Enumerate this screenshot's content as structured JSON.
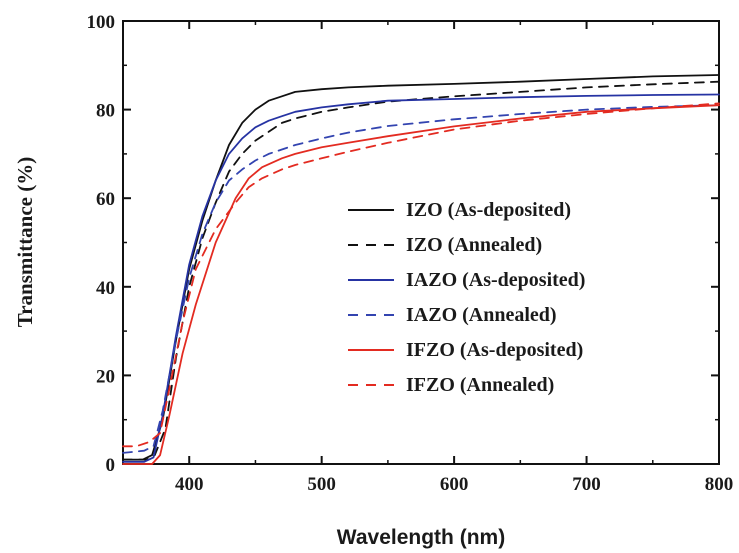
{
  "chart_data": {
    "type": "line",
    "xlabel": "Wavelength (nm)",
    "ylabel": "Transmittance (%)",
    "xlim": [
      350,
      800
    ],
    "ylim": [
      0,
      100
    ],
    "xticks": [
      400,
      500,
      600,
      700,
      800
    ],
    "yticks": [
      0,
      20,
      40,
      60,
      80,
      100
    ],
    "legend_position": "center-right",
    "grid": false,
    "series": [
      {
        "name": "IZO (As-deposited)",
        "color": "#111111",
        "dash": "solid",
        "points": [
          [
            350,
            1
          ],
          [
            365,
            1
          ],
          [
            372,
            2
          ],
          [
            380,
            10
          ],
          [
            390,
            28
          ],
          [
            400,
            44
          ],
          [
            410,
            55
          ],
          [
            420,
            64
          ],
          [
            430,
            72
          ],
          [
            440,
            77
          ],
          [
            450,
            80
          ],
          [
            460,
            82
          ],
          [
            470,
            83
          ],
          [
            480,
            84
          ],
          [
            500,
            84.6
          ],
          [
            520,
            85
          ],
          [
            550,
            85.4
          ],
          [
            600,
            85.8
          ],
          [
            650,
            86.3
          ],
          [
            700,
            86.9
          ],
          [
            750,
            87.5
          ],
          [
            800,
            87.8
          ]
        ]
      },
      {
        "name": "IZO (Annealed)",
        "color": "#111111",
        "dash": "dashed",
        "points": [
          [
            350,
            1
          ],
          [
            368,
            1
          ],
          [
            374,
            2
          ],
          [
            382,
            8
          ],
          [
            390,
            24
          ],
          [
            400,
            40
          ],
          [
            410,
            51
          ],
          [
            420,
            59
          ],
          [
            430,
            66
          ],
          [
            440,
            70
          ],
          [
            450,
            73
          ],
          [
            460,
            75
          ],
          [
            470,
            77
          ],
          [
            480,
            78
          ],
          [
            500,
            79.5
          ],
          [
            520,
            80.5
          ],
          [
            550,
            81.8
          ],
          [
            600,
            83
          ],
          [
            650,
            84
          ],
          [
            700,
            85
          ],
          [
            750,
            85.7
          ],
          [
            800,
            86.3
          ]
        ]
      },
      {
        "name": "IAZO (As-deposited)",
        "color": "#2633a3",
        "dash": "solid",
        "points": [
          [
            350,
            0.5
          ],
          [
            366,
            0.5
          ],
          [
            373,
            1.5
          ],
          [
            380,
            11
          ],
          [
            390,
            29
          ],
          [
            400,
            45
          ],
          [
            410,
            56
          ],
          [
            420,
            64
          ],
          [
            430,
            70
          ],
          [
            440,
            73.5
          ],
          [
            450,
            76
          ],
          [
            460,
            77.5
          ],
          [
            470,
            78.5
          ],
          [
            480,
            79.5
          ],
          [
            500,
            80.5
          ],
          [
            520,
            81.2
          ],
          [
            550,
            82
          ],
          [
            600,
            82.4
          ],
          [
            650,
            82.8
          ],
          [
            700,
            83.1
          ],
          [
            750,
            83.3
          ],
          [
            800,
            83.4
          ]
        ]
      },
      {
        "name": "IAZO (Annealed)",
        "color": "#3344b0",
        "dash": "dashed",
        "points": [
          [
            350,
            2.5
          ],
          [
            366,
            3
          ],
          [
            373,
            4
          ],
          [
            380,
            12
          ],
          [
            390,
            28
          ],
          [
            400,
            42
          ],
          [
            410,
            52
          ],
          [
            420,
            59
          ],
          [
            430,
            64
          ],
          [
            440,
            66.5
          ],
          [
            450,
            68.5
          ],
          [
            460,
            70
          ],
          [
            470,
            71
          ],
          [
            480,
            72
          ],
          [
            500,
            73.5
          ],
          [
            520,
            74.8
          ],
          [
            550,
            76.3
          ],
          [
            600,
            77.8
          ],
          [
            650,
            79
          ],
          [
            700,
            80
          ],
          [
            750,
            80.6
          ],
          [
            800,
            81
          ]
        ]
      },
      {
        "name": "IFZO (As-deposited)",
        "color": "#e32b21",
        "dash": "solid",
        "points": [
          [
            350,
            0
          ],
          [
            372,
            0
          ],
          [
            378,
            2
          ],
          [
            385,
            11
          ],
          [
            395,
            25
          ],
          [
            405,
            36
          ],
          [
            420,
            50
          ],
          [
            435,
            60
          ],
          [
            445,
            64.5
          ],
          [
            455,
            67
          ],
          [
            470,
            69
          ],
          [
            480,
            70
          ],
          [
            500,
            71.5
          ],
          [
            520,
            72.5
          ],
          [
            550,
            74
          ],
          [
            600,
            76.2
          ],
          [
            650,
            78
          ],
          [
            700,
            79.5
          ],
          [
            750,
            80.3
          ],
          [
            800,
            81
          ]
        ]
      },
      {
        "name": "IFZO (Annealed)",
        "color": "#e32b21",
        "dash": "dashed",
        "points": [
          [
            350,
            4
          ],
          [
            360,
            4
          ],
          [
            370,
            5
          ],
          [
            378,
            7
          ],
          [
            385,
            17
          ],
          [
            395,
            32
          ],
          [
            405,
            44
          ],
          [
            420,
            53
          ],
          [
            435,
            59
          ],
          [
            445,
            62.5
          ],
          [
            455,
            64.5
          ],
          [
            470,
            66.5
          ],
          [
            480,
            67.5
          ],
          [
            500,
            69
          ],
          [
            520,
            70.5
          ],
          [
            550,
            72.5
          ],
          [
            600,
            75.5
          ],
          [
            650,
            77.5
          ],
          [
            700,
            79
          ],
          [
            750,
            80.3
          ],
          [
            800,
            81.4
          ]
        ]
      }
    ]
  }
}
